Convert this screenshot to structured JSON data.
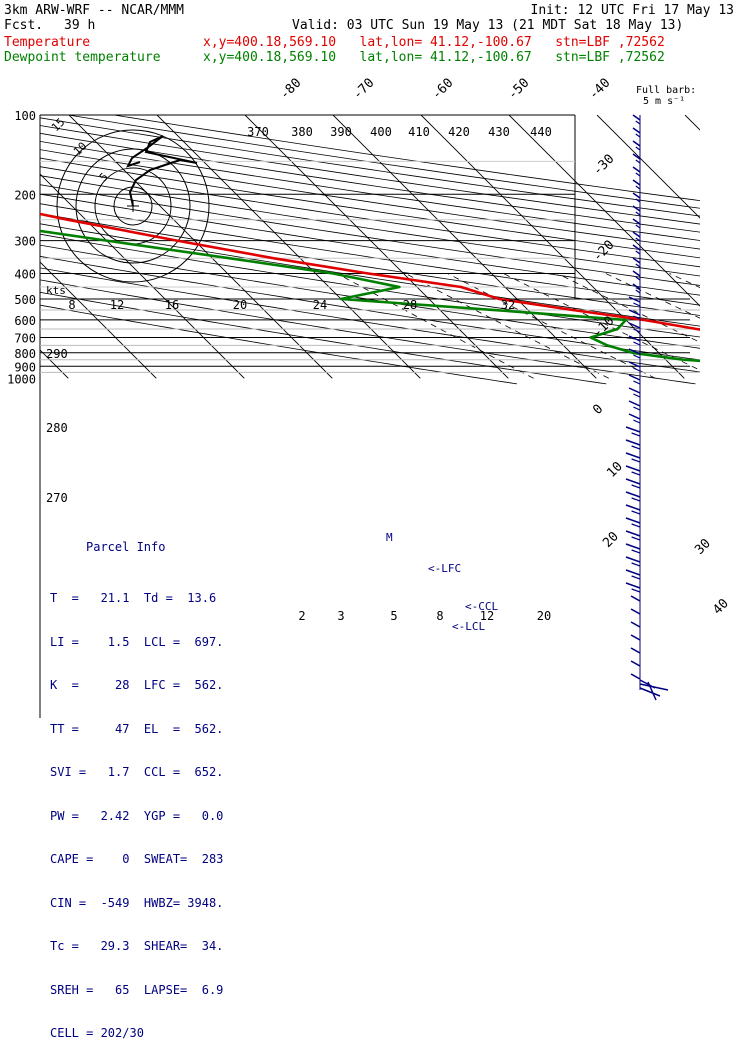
{
  "header": {
    "model": "3km ARW-WRF -- NCAR/MMM",
    "init": "Init: 12 UTC Fri 17 May 13",
    "fcst_label": "Fcst.",
    "fcst_value": "39 h",
    "valid": "Valid: 03 UTC Sun 19 May 13 (21 MDT Sat 18 May 13)",
    "temp_label": "Temperature",
    "temp_info": "x,y=400.18,569.10   lat,lon= 41.12,-100.67   stn=LBF ,72562",
    "dew_label": "Dewpoint temperature",
    "dew_info": "x,y=400.18,569.10   lat,lon= 41.12,-100.67   stn=LBF ,72562"
  },
  "colors": {
    "temperature": "#e00000",
    "dewpoint": "#008000",
    "parcel": "#000080",
    "wind": "#000080"
  },
  "chart_data": {
    "type": "line",
    "title": "",
    "ylabel": "",
    "xlabel": "",
    "y_scale": "log",
    "pressure_levels": [
      "100",
      "200",
      "300",
      "400",
      "500",
      "600",
      "700",
      "800",
      "900",
      "1000"
    ],
    "isotherm_labels": [
      "-80",
      "-70",
      "-60",
      "-50",
      "-40",
      "-30",
      "-20",
      "-10",
      "0",
      "10",
      "20",
      "30",
      "40"
    ],
    "theta_labels": [
      "370",
      "380",
      "390",
      "400",
      "410",
      "420",
      "430",
      "440"
    ],
    "left_theta_labels": [
      "290",
      "280",
      "270"
    ],
    "mixing_ratio_labels": [
      "2",
      "3",
      "5",
      "8",
      "12",
      "20"
    ],
    "hodograph_speed_labels": [
      "8",
      "12",
      "16",
      "20",
      "24",
      "28",
      "32"
    ],
    "hodograph_ring_labels": [
      "15",
      "10",
      "5"
    ],
    "hodograph_units": "kts",
    "barb_legend": "Full barb:",
    "barb_legend_value": "5 m s⁻¹",
    "level_markers": [
      {
        "label": "M",
        "pressure": 500
      },
      {
        "label": "<-LFC",
        "pressure": 562
      },
      {
        "label": "<-CCL",
        "pressure": 652
      },
      {
        "label": "<-LCL",
        "pressure": 697
      }
    ],
    "series": [
      {
        "name": "Temperature",
        "color": "#e00000",
        "points": [
          {
            "p": 100,
            "t": -59
          },
          {
            "p": 110,
            "t": -60
          },
          {
            "p": 125,
            "t": -58
          },
          {
            "p": 140,
            "t": -63
          },
          {
            "p": 150,
            "t": -68
          },
          {
            "p": 160,
            "t": -70
          },
          {
            "p": 175,
            "t": -68
          },
          {
            "p": 200,
            "t": -63
          },
          {
            "p": 250,
            "t": -52
          },
          {
            "p": 300,
            "t": -42
          },
          {
            "p": 350,
            "t": -33
          },
          {
            "p": 400,
            "t": -24
          },
          {
            "p": 450,
            "t": -15
          },
          {
            "p": 500,
            "t": -12
          },
          {
            "p": 550,
            "t": -5
          },
          {
            "p": 600,
            "t": 2
          },
          {
            "p": 650,
            "t": 7
          },
          {
            "p": 700,
            "t": 12
          },
          {
            "p": 750,
            "t": 16
          },
          {
            "p": 800,
            "t": 21
          },
          {
            "p": 850,
            "t": 26
          },
          {
            "p": 880,
            "t": 30
          },
          {
            "p": 905,
            "t": 31
          }
        ]
      },
      {
        "name": "Dewpoint temperature",
        "color": "#008000",
        "points": [
          {
            "p": 100,
            "t": -85
          },
          {
            "p": 110,
            "t": -86
          },
          {
            "p": 125,
            "t": -86
          },
          {
            "p": 150,
            "t": -87
          },
          {
            "p": 175,
            "t": -85
          },
          {
            "p": 200,
            "t": -80
          },
          {
            "p": 250,
            "t": -64
          },
          {
            "p": 300,
            "t": -50
          },
          {
            "p": 350,
            "t": -38
          },
          {
            "p": 400,
            "t": -28
          },
          {
            "p": 450,
            "t": -22
          },
          {
            "p": 500,
            "t": -30
          },
          {
            "p": 550,
            "t": -14
          },
          {
            "p": 600,
            "t": 0
          },
          {
            "p": 650,
            "t": -2
          },
          {
            "p": 700,
            "t": -6
          },
          {
            "p": 750,
            "t": -5
          },
          {
            "p": 800,
            "t": -3
          },
          {
            "p": 850,
            "t": 2
          },
          {
            "p": 880,
            "t": 8
          },
          {
            "p": 900,
            "t": 12
          },
          {
            "p": 905,
            "t": 16
          }
        ]
      }
    ]
  },
  "parcel_info": {
    "title": "Parcel Info",
    "rows": [
      "T  =   21.1  Td =  13.6",
      "LI =    1.5  LCL =  697.",
      "K  =     28  LFC =  562.",
      "TT =     47  EL  =  562.",
      "SVI =   1.7  CCL =  652.",
      "PW =   2.42  YGP =   0.0",
      "CAPE =    0  SWEAT=  283",
      "CIN =  -549  HWBZ= 3948.",
      "Tc =   29.3  SHEAR=  34.",
      "SREH =   65  LAPSE=  6.9",
      "CELL = 202/30"
    ]
  }
}
